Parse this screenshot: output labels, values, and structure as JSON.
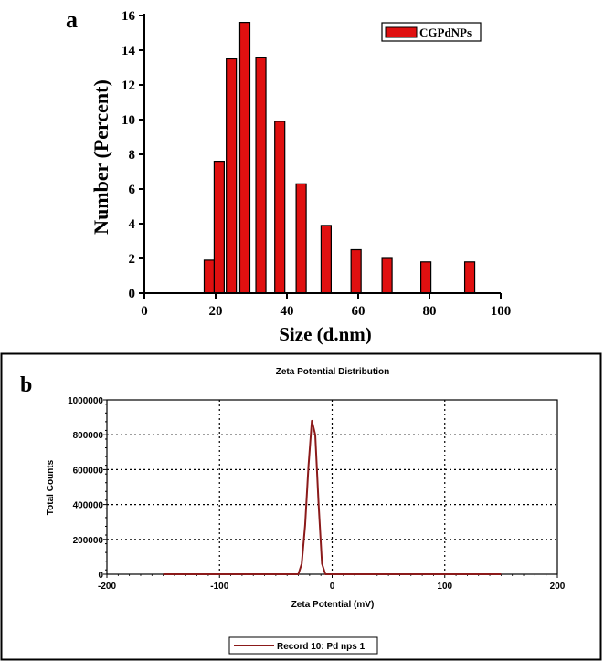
{
  "chart_data": [
    {
      "panel_label": "a",
      "type": "bar",
      "xlabel": "Size (d.nm)",
      "ylabel": "Number (Percent)",
      "xlim": [
        0,
        100
      ],
      "ylim": [
        0,
        16
      ],
      "xticks": [
        0,
        20,
        40,
        60,
        80,
        100
      ],
      "yticks": [
        0,
        2,
        4,
        6,
        8,
        10,
        12,
        14,
        16
      ],
      "legend_position": "top-right",
      "bar_color": "#e01010",
      "series": [
        {
          "name": "CGPdNPs",
          "x": [
            18.2,
            21.0,
            24.4,
            28.2,
            32.7,
            38.0,
            44.0,
            51.0,
            59.4,
            68.1,
            79.0,
            91.3
          ],
          "values": [
            1.9,
            7.6,
            13.5,
            15.6,
            13.6,
            9.9,
            6.3,
            3.9,
            2.5,
            2.0,
            1.8,
            1.8
          ]
        }
      ]
    },
    {
      "panel_label": "b",
      "type": "line",
      "title": "Zeta Potential Distribution",
      "xlabel": "Zeta Potential (mV)",
      "ylabel": "Total Counts",
      "xlim": [
        -200,
        200
      ],
      "ylim": [
        0,
        1000000
      ],
      "xticks": [
        -200,
        -100,
        0,
        100,
        200
      ],
      "yticks": [
        0,
        200000,
        400000,
        600000,
        800000,
        1000000
      ],
      "grid": true,
      "legend_position": "bottom-center",
      "line_color": "#8b1a1a",
      "series": [
        {
          "name": "Record 10: Pd nps 1",
          "x": [
            -150,
            -40,
            -30,
            -27,
            -24,
            -21,
            -18,
            -15,
            -12,
            -9,
            -6,
            -3,
            150
          ],
          "y": [
            0,
            0,
            0,
            60000,
            280000,
            620000,
            880000,
            800000,
            400000,
            60000,
            0,
            0,
            0
          ]
        }
      ]
    }
  ]
}
